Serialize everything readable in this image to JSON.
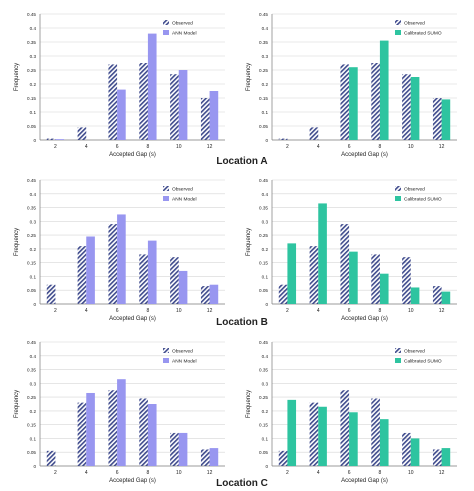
{
  "locations": [
    {
      "label": "Location A"
    },
    {
      "label": "Location B"
    },
    {
      "label": "Location C"
    }
  ],
  "colors": {
    "observed": "#3e4a8c",
    "ann": "#9896f0",
    "sumo": "#2ec4a0",
    "grid": "#d6d6d6",
    "axis": "#7a7a7a",
    "text": "#222222"
  },
  "chart_data": [
    {
      "type": "bar",
      "location": "Location A",
      "categories": [
        "2",
        "4",
        "6",
        "8",
        "10",
        "12"
      ],
      "series": [
        {
          "name": "Observed",
          "pattern": "hatched",
          "values": [
            0.005,
            0.045,
            0.27,
            0.275,
            0.235,
            0.15
          ]
        },
        {
          "name": "ANN Model",
          "values": [
            0.003,
            0.0,
            0.18,
            0.38,
            0.25,
            0.175
          ]
        }
      ],
      "xlabel": "Accepted Gap (s)",
      "ylabel": "Frequency",
      "ylim": [
        0,
        0.45
      ],
      "yticks": [
        "0",
        "0.05",
        "0.1",
        "0.15",
        "0.2",
        "0.25",
        "0.3",
        "0.35",
        "0.4",
        "0.45"
      ],
      "grid": true,
      "legend": "top-right"
    },
    {
      "type": "bar",
      "location": "Location A",
      "categories": [
        "2",
        "4",
        "6",
        "8",
        "10",
        "12"
      ],
      "series": [
        {
          "name": "Observed",
          "pattern": "hatched",
          "values": [
            0.005,
            0.045,
            0.27,
            0.275,
            0.235,
            0.15
          ]
        },
        {
          "name": "Calibrated SUMO",
          "values": [
            0.0,
            0.0,
            0.26,
            0.355,
            0.225,
            0.145
          ]
        }
      ],
      "xlabel": "Accepted Gap (s)",
      "ylabel": "Frequency",
      "ylim": [
        0,
        0.45
      ],
      "yticks": [
        "0",
        "0.05",
        "0.1",
        "0.15",
        "0.2",
        "0.25",
        "0.3",
        "0.35",
        "0.4",
        "0.45"
      ],
      "grid": true,
      "legend": "top-right"
    },
    {
      "type": "bar",
      "location": "Location B",
      "categories": [
        "2",
        "4",
        "6",
        "8",
        "10",
        "12"
      ],
      "series": [
        {
          "name": "Observed",
          "pattern": "hatched",
          "values": [
            0.07,
            0.21,
            0.29,
            0.18,
            0.17,
            0.065
          ]
        },
        {
          "name": "ANN Model",
          "values": [
            0.0,
            0.245,
            0.325,
            0.23,
            0.12,
            0.07
          ]
        }
      ],
      "xlabel": "Accepted Gap (s)",
      "ylabel": "Frequency",
      "ylim": [
        0,
        0.45
      ],
      "yticks": [
        "0",
        "0.05",
        "0.1",
        "0.15",
        "0.2",
        "0.25",
        "0.3",
        "0.35",
        "0.4",
        "0.45"
      ],
      "grid": true,
      "legend": "top-right"
    },
    {
      "type": "bar",
      "location": "Location B",
      "categories": [
        "2",
        "4",
        "6",
        "8",
        "10",
        "12"
      ],
      "series": [
        {
          "name": "Observed",
          "pattern": "hatched",
          "values": [
            0.07,
            0.21,
            0.29,
            0.18,
            0.17,
            0.065
          ]
        },
        {
          "name": "Calibrated SUMO",
          "values": [
            0.22,
            0.365,
            0.19,
            0.11,
            0.06,
            0.045
          ]
        }
      ],
      "xlabel": "Accepted Gap (s)",
      "ylabel": "Frequency",
      "ylim": [
        0,
        0.45
      ],
      "yticks": [
        "0",
        "0.05",
        "0.1",
        "0.15",
        "0.2",
        "0.25",
        "0.3",
        "0.35",
        "0.4",
        "0.45"
      ],
      "grid": true,
      "legend": "top-right"
    },
    {
      "type": "bar",
      "location": "Location C",
      "categories": [
        "2",
        "4",
        "6",
        "8",
        "10",
        "12"
      ],
      "series": [
        {
          "name": "Observed",
          "pattern": "hatched",
          "values": [
            0.055,
            0.23,
            0.275,
            0.245,
            0.12,
            0.06
          ]
        },
        {
          "name": "ANN Model",
          "values": [
            0.0,
            0.265,
            0.315,
            0.225,
            0.12,
            0.065
          ]
        }
      ],
      "xlabel": "Accepted Gap (s)",
      "ylabel": "Frequency",
      "ylim": [
        0,
        0.45
      ],
      "yticks": [
        "0",
        "0.05",
        "0.1",
        "0.15",
        "0.2",
        "0.25",
        "0.3",
        "0.35",
        "0.4",
        "0.45"
      ],
      "grid": true,
      "legend": "top-right"
    },
    {
      "type": "bar",
      "location": "Location C",
      "categories": [
        "2",
        "4",
        "6",
        "8",
        "10",
        "12"
      ],
      "series": [
        {
          "name": "Observed",
          "pattern": "hatched",
          "values": [
            0.055,
            0.23,
            0.275,
            0.245,
            0.12,
            0.06
          ]
        },
        {
          "name": "Calibrated SUMO",
          "values": [
            0.24,
            0.215,
            0.195,
            0.17,
            0.1,
            0.065
          ]
        }
      ],
      "xlabel": "Accepted Gap (s)",
      "ylabel": "Frequency",
      "ylim": [
        0,
        0.45
      ],
      "yticks": [
        "0",
        "0.05",
        "0.1",
        "0.15",
        "0.2",
        "0.25",
        "0.3",
        "0.35",
        "0.4",
        "0.45"
      ],
      "grid": true,
      "legend": "top-right"
    }
  ]
}
